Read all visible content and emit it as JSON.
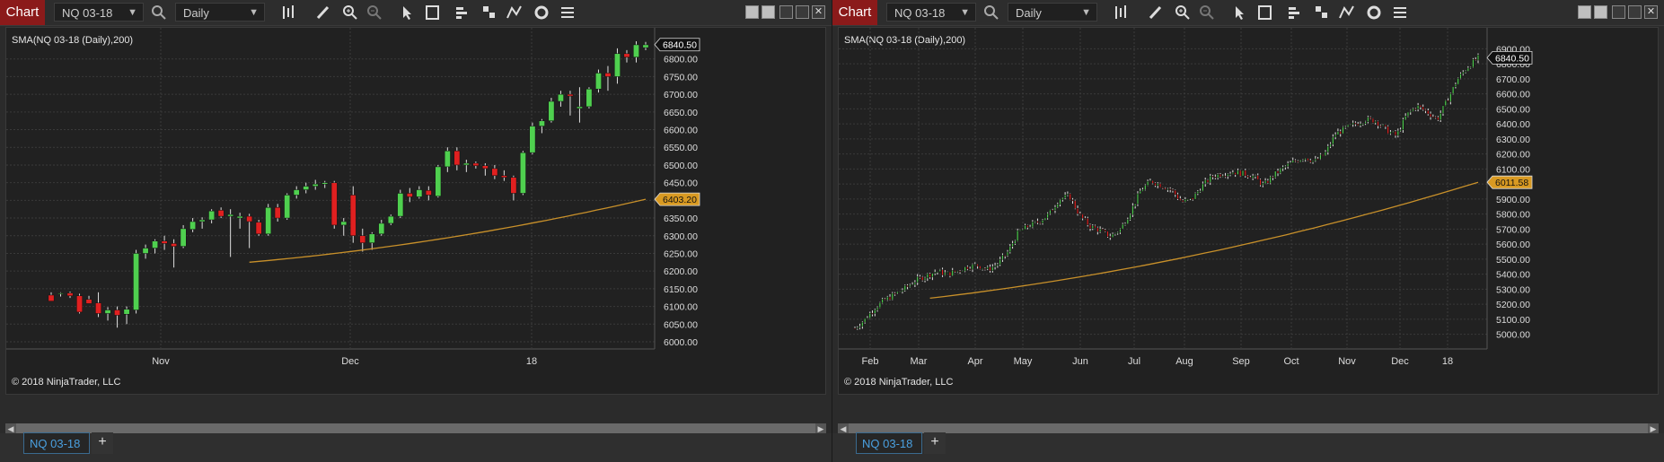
{
  "panels": [
    {
      "chart_button": "Chart",
      "instrument": "NQ 03-18",
      "interval": "Daily",
      "indicator_label": "SMA(NQ 03-18 (Daily),200)",
      "copyright": "© 2018 NinjaTrader, LLC",
      "tab_label": "NQ 03-18",
      "add_tab": "+",
      "price_badge_label": "6840.50",
      "sma_badge_label": "6403.20",
      "y_ticks": [
        "6800.00",
        "6750.00",
        "6700.00",
        "6650.00",
        "6600.00",
        "6550.00",
        "6500.00",
        "6450.00",
        "6400.00",
        "6350.00",
        "6300.00",
        "6250.00",
        "6200.00",
        "6150.00",
        "6100.00",
        "6050.00",
        "6000.00"
      ],
      "x_labels": [
        "Nov",
        "Dec",
        "18"
      ]
    },
    {
      "chart_button": "Chart",
      "instrument": "NQ 03-18",
      "interval": "Daily",
      "indicator_label": "SMA(NQ 03-18 (Daily),200)",
      "copyright": "© 2018 NinjaTrader, LLC",
      "tab_label": "NQ 03-18",
      "add_tab": "+",
      "price_badge_label": "6840.50",
      "sma_badge_label": "6011.58",
      "y_ticks": [
        "6900.00",
        "6800.00",
        "6700.00",
        "6600.00",
        "6500.00",
        "6400.00",
        "6300.00",
        "6200.00",
        "6100.00",
        "6000.00",
        "5900.00",
        "5800.00",
        "5700.00",
        "5600.00",
        "5500.00",
        "5400.00",
        "5300.00",
        "5200.00",
        "5100.00",
        "5000.00"
      ],
      "x_labels": [
        "Feb",
        "Mar",
        "Apr",
        "May",
        "Jun",
        "Jul",
        "Aug",
        "Sep",
        "Oct",
        "Nov",
        "Dec",
        "18"
      ]
    }
  ],
  "colors": {
    "up": "#4fd04f",
    "down": "#e02020",
    "sma": "#c8902a",
    "badge_price": "#111111",
    "badge_sma": "#d99a22"
  },
  "icons": [
    "search-icon",
    "bar-style-icon",
    "pencil-icon",
    "zoom-in-icon",
    "zoom-out-icon",
    "pointer-icon",
    "data-box-icon",
    "strategy-icon",
    "indicator-icon",
    "drawing-tools-icon",
    "refresh-icon",
    "properties-icon"
  ],
  "chart_data": [
    {
      "type": "candlestick",
      "title": "SMA(NQ 03-18 (Daily),200)",
      "ylim": [
        6000,
        6850
      ],
      "x_labels": [
        "Nov",
        "Dec",
        "18"
      ],
      "last_price": 6840.5,
      "sma_last": 6403.2,
      "ohlc": [
        [
          6132,
          6140,
          6118,
          6115
        ],
        [
          6136,
          6140,
          6128,
          6138
        ],
        [
          6138,
          6142,
          6124,
          6130
        ],
        [
          6130,
          6136,
          6080,
          6084
        ],
        [
          6120,
          6130,
          6110,
          6108
        ],
        [
          6110,
          6140,
          6070,
          6080
        ],
        [
          6080,
          6098,
          6060,
          6090
        ],
        [
          6090,
          6100,
          6040,
          6075
        ],
        [
          6078,
          6100,
          6050,
          6092
        ],
        [
          6090,
          6260,
          6080,
          6250
        ],
        [
          6250,
          6275,
          6235,
          6265
        ],
        [
          6265,
          6290,
          6250,
          6285
        ],
        [
          6285,
          6300,
          6260,
          6278
        ],
        [
          6278,
          6290,
          6210,
          6270
        ],
        [
          6270,
          6330,
          6265,
          6320
        ],
        [
          6318,
          6350,
          6310,
          6340
        ],
        [
          6340,
          6352,
          6320,
          6345
        ],
        [
          6345,
          6375,
          6335,
          6370
        ],
        [
          6372,
          6380,
          6350,
          6355
        ],
        [
          6355,
          6375,
          6240,
          6360
        ],
        [
          6350,
          6365,
          6320,
          6355
        ],
        [
          6355,
          6362,
          6265,
          6340
        ],
        [
          6338,
          6345,
          6300,
          6305
        ],
        [
          6305,
          6390,
          6300,
          6380
        ],
        [
          6380,
          6390,
          6340,
          6350
        ],
        [
          6350,
          6420,
          6345,
          6415
        ],
        [
          6415,
          6440,
          6405,
          6430
        ],
        [
          6430,
          6450,
          6420,
          6440
        ],
        [
          6440,
          6458,
          6430,
          6446
        ],
        [
          6446,
          6455,
          6435,
          6450
        ],
        [
          6450,
          6455,
          6320,
          6330
        ],
        [
          6330,
          6350,
          6300,
          6340
        ],
        [
          6415,
          6440,
          6280,
          6300
        ],
        [
          6300,
          6320,
          6255,
          6280
        ],
        [
          6280,
          6310,
          6260,
          6305
        ],
        [
          6305,
          6345,
          6300,
          6335
        ],
        [
          6335,
          6360,
          6330,
          6355
        ],
        [
          6355,
          6430,
          6350,
          6420
        ],
        [
          6420,
          6435,
          6395,
          6410
        ],
        [
          6410,
          6440,
          6405,
          6430
        ],
        [
          6428,
          6440,
          6400,
          6415
        ],
        [
          6412,
          6500,
          6408,
          6495
        ],
        [
          6495,
          6550,
          6480,
          6540
        ],
        [
          6540,
          6550,
          6485,
          6500
        ],
        [
          6500,
          6515,
          6480,
          6505
        ],
        [
          6505,
          6510,
          6490,
          6498
        ],
        [
          6498,
          6505,
          6470,
          6490
        ],
        [
          6490,
          6500,
          6460,
          6470
        ],
        [
          6470,
          6485,
          6455,
          6465
        ],
        [
          6465,
          6470,
          6400,
          6420
        ],
        [
          6420,
          6540,
          6415,
          6535
        ],
        [
          6535,
          6620,
          6530,
          6610
        ],
        [
          6610,
          6630,
          6590,
          6625
        ],
        [
          6625,
          6690,
          6620,
          6680
        ],
        [
          6680,
          6710,
          6665,
          6700
        ],
        [
          6700,
          6710,
          6640,
          6695
        ],
        [
          6660,
          6720,
          6620,
          6665
        ],
        [
          6665,
          6720,
          6660,
          6715
        ],
        [
          6715,
          6770,
          6705,
          6760
        ],
        [
          6760,
          6780,
          6710,
          6750
        ],
        [
          6750,
          6830,
          6730,
          6815
        ],
        [
          6815,
          6825,
          6790,
          6805
        ],
        [
          6805,
          6850,
          6790,
          6840
        ],
        [
          6832,
          6848,
          6825,
          6840
        ]
      ]
    },
    {
      "type": "candlestick",
      "title": "SMA(NQ 03-18 (Daily),200)",
      "ylim": [
        4950,
        6950
      ],
      "x_labels": [
        "Feb",
        "Mar",
        "Apr",
        "May",
        "Jun",
        "Jul",
        "Aug",
        "Sep",
        "Oct",
        "Nov",
        "Dec",
        "18"
      ],
      "last_price": 6840.5,
      "sma_last": 6011.58,
      "trend": [
        5040,
        5100,
        5180,
        5230,
        5270,
        5310,
        5360,
        5390,
        5420,
        5400,
        5420,
        5450,
        5460,
        5430,
        5470,
        5550,
        5680,
        5720,
        5750,
        5800,
        5900,
        5920,
        5790,
        5720,
        5690,
        5650,
        5700,
        5820,
        5960,
        6020,
        5990,
        5960,
        5880,
        5900,
        5990,
        6050,
        6070,
        6080,
        6070,
        6050,
        5990,
        6060,
        6110,
        6150,
        6180,
        6150,
        6200,
        6330,
        6370,
        6400,
        6430,
        6420,
        6360,
        6320,
        6460,
        6520,
        6480,
        6430,
        6560,
        6700,
        6780,
        6840
      ]
    }
  ]
}
